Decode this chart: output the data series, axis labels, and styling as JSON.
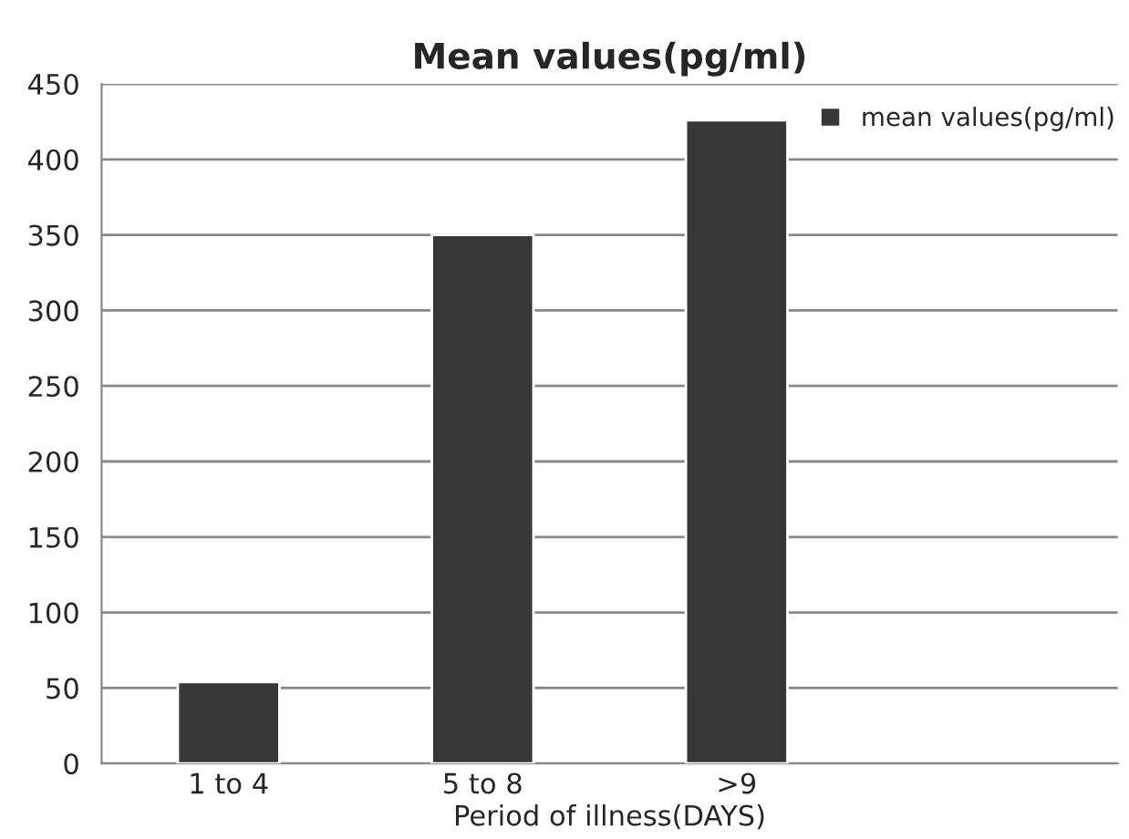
{
  "chart_data": {
    "type": "bar",
    "title": "Mean values(pg/ml)",
    "xlabel": "Period of illness(DAYS)",
    "categories": [
      "1 to 4",
      "5 to 8",
      ">9",
      null
    ],
    "series": [
      {
        "name": "mean values(pg/ml)",
        "color": "#383838",
        "values": [
          54,
          350,
          426,
          null
        ]
      }
    ],
    "ylim": [
      0,
      450
    ],
    "yticks": [
      0,
      50,
      100,
      150,
      200,
      250,
      300,
      350,
      400,
      450
    ],
    "grid": "y",
    "legend": "top right"
  }
}
